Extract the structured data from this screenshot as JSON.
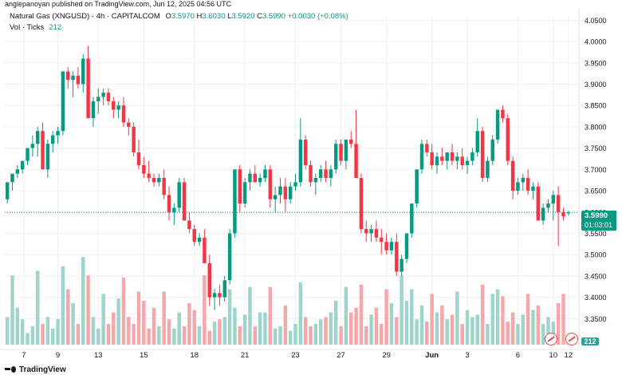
{
  "header": {
    "published": "anglepanoyan published on TradingView.com, Jun 12, 2025 04:56 UTC"
  },
  "legend": {
    "symbol": "Natural Gas (XNGUSD) · 4h · CAPITALCOM",
    "o_label": "O",
    "o": "3.5970",
    "h_label": "H",
    "h": "3.6030",
    "l_label": "L",
    "l": "3.5920",
    "c_label": "C",
    "c": "3.5990",
    "change": "+0.0030 (+0.08%)",
    "vol_label": "Vol · Ticks",
    "vol": "212"
  },
  "price_badge": {
    "price": "3.5990",
    "timer": "01:03:01"
  },
  "volume_badge": "212",
  "footer": {
    "brand": "TradingView"
  },
  "colors": {
    "up": "#089981",
    "down": "#f23645",
    "up_vol": "#9fd4ca",
    "down_vol": "#f4a8ab",
    "grid": "#eef0f3"
  },
  "chart_data": {
    "type": "candlestick",
    "title": "Natural Gas (XNGUSD) · 4h · CAPITALCOM",
    "x_ticks": [
      "7",
      "9",
      "13",
      "15",
      "18",
      "21",
      "23",
      "27",
      "29",
      "Jun",
      "3",
      "6",
      "10",
      "12"
    ],
    "y_ticks": [
      "4.0500",
      "4.0000",
      "3.9500",
      "3.9000",
      "3.8500",
      "3.8000",
      "3.7500",
      "3.7000",
      "3.6500",
      "3.6000",
      "3.5500",
      "3.5000",
      "3.4500",
      "3.4000",
      "3.3500"
    ],
    "y_range": [
      3.33,
      4.06
    ],
    "last_price": 3.599,
    "grid": true,
    "candles": [
      [
        3.63,
        3.67,
        3.62,
        3.67
      ],
      [
        3.67,
        3.69,
        3.65,
        3.69
      ],
      [
        3.69,
        3.71,
        3.68,
        3.7
      ],
      [
        3.7,
        3.72,
        3.69,
        3.72
      ],
      [
        3.72,
        3.75,
        3.71,
        3.75
      ],
      [
        3.75,
        3.78,
        3.73,
        3.76
      ],
      [
        3.76,
        3.8,
        3.73,
        3.79
      ],
      [
        3.79,
        3.81,
        3.7,
        3.7
      ],
      [
        3.7,
        3.77,
        3.68,
        3.76
      ],
      [
        3.76,
        3.79,
        3.74,
        3.78
      ],
      [
        3.78,
        3.8,
        3.76,
        3.79
      ],
      [
        3.79,
        3.93,
        3.78,
        3.93
      ],
      [
        3.93,
        3.94,
        3.89,
        3.91
      ],
      [
        3.91,
        3.93,
        3.87,
        3.92
      ],
      [
        3.92,
        3.94,
        3.89,
        3.9
      ],
      [
        3.9,
        3.97,
        3.88,
        3.96
      ],
      [
        3.96,
        3.99,
        3.82,
        3.82
      ],
      [
        3.82,
        3.87,
        3.8,
        3.86
      ],
      [
        3.86,
        3.89,
        3.83,
        3.87
      ],
      [
        3.87,
        3.89,
        3.85,
        3.88
      ],
      [
        3.88,
        3.89,
        3.85,
        3.86
      ],
      [
        3.86,
        3.87,
        3.82,
        3.84
      ],
      [
        3.84,
        3.86,
        3.82,
        3.85
      ],
      [
        3.85,
        3.87,
        3.8,
        3.81
      ],
      [
        3.81,
        3.82,
        3.78,
        3.8
      ],
      [
        3.8,
        3.81,
        3.73,
        3.74
      ],
      [
        3.74,
        3.77,
        3.7,
        3.71
      ],
      [
        3.71,
        3.73,
        3.68,
        3.69
      ],
      [
        3.69,
        3.72,
        3.67,
        3.68
      ],
      [
        3.68,
        3.69,
        3.66,
        3.67
      ],
      [
        3.67,
        3.69,
        3.66,
        3.68
      ],
      [
        3.68,
        3.7,
        3.63,
        3.64
      ],
      [
        3.64,
        3.66,
        3.58,
        3.6
      ],
      [
        3.6,
        3.62,
        3.57,
        3.61
      ],
      [
        3.61,
        3.68,
        3.6,
        3.67
      ],
      [
        3.67,
        3.68,
        3.58,
        3.58
      ],
      [
        3.58,
        3.6,
        3.55,
        3.56
      ],
      [
        3.56,
        3.57,
        3.52,
        3.53
      ],
      [
        3.53,
        3.55,
        3.52,
        3.54
      ],
      [
        3.54,
        3.56,
        3.48,
        3.48
      ],
      [
        3.48,
        3.5,
        3.38,
        3.4
      ],
      [
        3.4,
        3.42,
        3.37,
        3.41
      ],
      [
        3.41,
        3.43,
        3.38,
        3.4
      ],
      [
        3.4,
        3.45,
        3.39,
        3.44
      ],
      [
        3.44,
        3.56,
        3.43,
        3.55
      ],
      [
        3.55,
        3.7,
        3.54,
        3.7
      ],
      [
        3.7,
        3.71,
        3.6,
        3.62
      ],
      [
        3.62,
        3.68,
        3.61,
        3.67
      ],
      [
        3.67,
        3.7,
        3.65,
        3.69
      ],
      [
        3.69,
        3.71,
        3.67,
        3.67
      ],
      [
        3.67,
        3.69,
        3.66,
        3.68
      ],
      [
        3.68,
        3.71,
        3.67,
        3.7
      ],
      [
        3.7,
        3.71,
        3.61,
        3.63
      ],
      [
        3.63,
        3.66,
        3.6,
        3.64
      ],
      [
        3.64,
        3.68,
        3.62,
        3.66
      ],
      [
        3.66,
        3.68,
        3.6,
        3.63
      ],
      [
        3.63,
        3.67,
        3.62,
        3.66
      ],
      [
        3.66,
        3.69,
        3.65,
        3.67
      ],
      [
        3.67,
        3.82,
        3.66,
        3.77
      ],
      [
        3.77,
        3.78,
        3.7,
        3.71
      ],
      [
        3.71,
        3.72,
        3.66,
        3.67
      ],
      [
        3.67,
        3.69,
        3.64,
        3.68
      ],
      [
        3.68,
        3.71,
        3.67,
        3.7
      ],
      [
        3.7,
        3.72,
        3.67,
        3.68
      ],
      [
        3.68,
        3.71,
        3.66,
        3.7
      ],
      [
        3.7,
        3.77,
        3.69,
        3.76
      ],
      [
        3.76,
        3.77,
        3.71,
        3.72
      ],
      [
        3.72,
        3.77,
        3.7,
        3.77
      ],
      [
        3.77,
        3.79,
        3.75,
        3.76
      ],
      [
        3.76,
        3.84,
        3.68,
        3.68
      ],
      [
        3.68,
        3.69,
        3.55,
        3.56
      ],
      [
        3.56,
        3.58,
        3.53,
        3.55
      ],
      [
        3.55,
        3.57,
        3.53,
        3.56
      ],
      [
        3.56,
        3.58,
        3.53,
        3.54
      ],
      [
        3.54,
        3.56,
        3.5,
        3.53
      ],
      [
        3.53,
        3.55,
        3.5,
        3.51
      ],
      [
        3.51,
        3.54,
        3.5,
        3.53
      ],
      [
        3.53,
        3.55,
        3.45,
        3.46
      ],
      [
        3.46,
        3.5,
        3.45,
        3.49
      ],
      [
        3.49,
        3.55,
        3.48,
        3.55
      ],
      [
        3.55,
        3.62,
        3.54,
        3.62
      ],
      [
        3.62,
        3.7,
        3.61,
        3.7
      ],
      [
        3.7,
        3.77,
        3.69,
        3.76
      ],
      [
        3.76,
        3.77,
        3.73,
        3.74
      ],
      [
        3.74,
        3.76,
        3.7,
        3.71
      ],
      [
        3.71,
        3.74,
        3.69,
        3.73
      ],
      [
        3.73,
        3.75,
        3.71,
        3.72
      ],
      [
        3.72,
        3.74,
        3.7,
        3.74
      ],
      [
        3.74,
        3.76,
        3.71,
        3.72
      ],
      [
        3.72,
        3.74,
        3.7,
        3.73
      ],
      [
        3.73,
        3.75,
        3.7,
        3.71
      ],
      [
        3.71,
        3.73,
        3.69,
        3.72
      ],
      [
        3.72,
        3.75,
        3.71,
        3.74
      ],
      [
        3.74,
        3.82,
        3.73,
        3.79
      ],
      [
        3.79,
        3.8,
        3.67,
        3.68
      ],
      [
        3.68,
        3.73,
        3.67,
        3.72
      ],
      [
        3.72,
        3.78,
        3.71,
        3.77
      ],
      [
        3.77,
        3.84,
        3.76,
        3.84
      ],
      [
        3.84,
        3.85,
        3.81,
        3.82
      ],
      [
        3.82,
        3.83,
        3.71,
        3.72
      ],
      [
        3.72,
        3.73,
        3.63,
        3.65
      ],
      [
        3.65,
        3.68,
        3.64,
        3.67
      ],
      [
        3.67,
        3.69,
        3.65,
        3.68
      ],
      [
        3.68,
        3.7,
        3.64,
        3.65
      ],
      [
        3.65,
        3.67,
        3.63,
        3.66
      ],
      [
        3.66,
        3.67,
        3.58,
        3.58
      ],
      [
        3.58,
        3.62,
        3.57,
        3.61
      ],
      [
        3.61,
        3.63,
        3.6,
        3.62
      ],
      [
        3.62,
        3.65,
        3.58,
        3.64
      ],
      [
        3.64,
        3.66,
        3.52,
        3.6
      ],
      [
        3.6,
        3.61,
        3.58,
        3.59
      ],
      [
        3.597,
        3.603,
        3.592,
        3.599
      ]
    ],
    "volumes": [
      60,
      150,
      80,
      55,
      25,
      40,
      160,
      45,
      60,
      35,
      55,
      170,
      120,
      90,
      45,
      190,
      150,
      60,
      35,
      110,
      45,
      70,
      100,
      145,
      60,
      45,
      115,
      95,
      35,
      80,
      40,
      115,
      55,
      35,
      70,
      40,
      90,
      75,
      40,
      150,
      30,
      50,
      55,
      60,
      120,
      80,
      40,
      65,
      125,
      40,
      70,
      70,
      125,
      35,
      40,
      85,
      30,
      45,
      135,
      60,
      40,
      45,
      55,
      60,
      70,
      95,
      40,
      125,
      70,
      80,
      130,
      40,
      65,
      80,
      45,
      120,
      90,
      60,
      150,
      95,
      120,
      55,
      85,
      50,
      110,
      70,
      85,
      55,
      65,
      115,
      45,
      75,
      60,
      65,
      130,
      45,
      110,
      120,
      105,
      50,
      70,
      45,
      65,
      110,
      75,
      85,
      45,
      60,
      50,
      90,
      110,
      20
    ]
  }
}
